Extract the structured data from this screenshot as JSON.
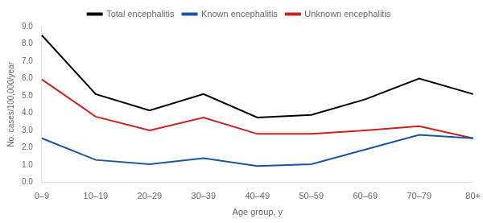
{
  "chart_data": {
    "type": "line",
    "categories": [
      "0–9",
      "10–19",
      "20–29",
      "30–39",
      "40–49",
      "50–59",
      "60–69",
      "70–79",
      "80+"
    ],
    "series": [
      {
        "name": "Total encephalitis",
        "color": "#000000",
        "values": [
          8.5,
          5.1,
          4.15,
          5.1,
          3.75,
          3.9,
          4.8,
          6.0,
          5.1
        ]
      },
      {
        "name": "Known encephalitis",
        "color": "#1C54A8",
        "values": [
          2.55,
          1.3,
          1.05,
          1.4,
          0.95,
          1.05,
          1.9,
          2.75,
          2.55
        ]
      },
      {
        "name": "Unknown encephalitis",
        "color": "#CC2222",
        "values": [
          5.95,
          3.8,
          3.0,
          3.75,
          2.8,
          2.8,
          3.0,
          3.25,
          2.55
        ]
      }
    ],
    "xlabel": "Age group, y",
    "ylabel": "No. cases/100,000/year",
    "ylim": [
      0,
      9
    ],
    "yticks": [
      {
        "value": 0,
        "label": "0.0"
      },
      {
        "value": 1,
        "label": "1.0"
      },
      {
        "value": 2,
        "label": "2.0"
      },
      {
        "value": 3,
        "label": "3.0"
      },
      {
        "value": 4,
        "label": "4.0"
      },
      {
        "value": 5,
        "label": "5.0"
      },
      {
        "value": 6,
        "label": "6.0"
      },
      {
        "value": 7,
        "label": "7.0"
      },
      {
        "value": 8,
        "label": "8.0"
      },
      {
        "value": 9,
        "label": "9.0"
      }
    ],
    "grid": false,
    "legend": "top"
  }
}
